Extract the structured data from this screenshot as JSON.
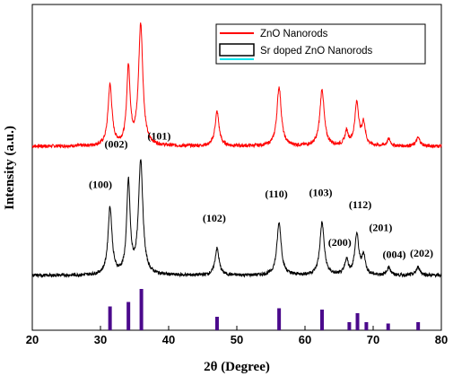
{
  "chart_data": {
    "type": "line",
    "xlabel": "2θ (Degree)",
    "ylabel": "Intensity (a.u.)",
    "xlim": [
      20,
      80
    ],
    "x_ticks": [
      20,
      30,
      40,
      50,
      60,
      70,
      80
    ],
    "y_ticks_shown": false,
    "grid": false,
    "legend_position": "top-right",
    "series": [
      {
        "name": "ZnO Nanorods",
        "color": "#ff0000",
        "peaks": [
          {
            "x": 31.4,
            "h": 0.44,
            "w": 0.35
          },
          {
            "x": 34.1,
            "h": 0.56,
            "w": 0.3
          },
          {
            "x": 35.9,
            "h": 0.88,
            "w": 0.38
          },
          {
            "x": 47.1,
            "h": 0.25,
            "w": 0.35
          },
          {
            "x": 56.2,
            "h": 0.43,
            "w": 0.38
          },
          {
            "x": 62.5,
            "h": 0.41,
            "w": 0.38
          },
          {
            "x": 66.1,
            "h": 0.1,
            "w": 0.3
          },
          {
            "x": 67.6,
            "h": 0.31,
            "w": 0.35
          },
          {
            "x": 68.6,
            "h": 0.16,
            "w": 0.3
          },
          {
            "x": 72.3,
            "h": 0.05,
            "w": 0.3
          },
          {
            "x": 76.6,
            "h": 0.06,
            "w": 0.35
          }
        ]
      },
      {
        "name": "Sr doped ZnO Nanorods",
        "color": "#000000",
        "peaks": [
          {
            "x": 31.4,
            "h": 0.5,
            "w": 0.35
          },
          {
            "x": 34.1,
            "h": 0.68,
            "w": 0.3
          },
          {
            "x": 35.9,
            "h": 0.85,
            "w": 0.38
          },
          {
            "x": 47.1,
            "h": 0.2,
            "w": 0.35
          },
          {
            "x": 56.2,
            "h": 0.39,
            "w": 0.38
          },
          {
            "x": 62.5,
            "h": 0.39,
            "w": 0.38
          },
          {
            "x": 66.1,
            "h": 0.11,
            "w": 0.3
          },
          {
            "x": 67.6,
            "h": 0.3,
            "w": 0.35
          },
          {
            "x": 68.6,
            "h": 0.14,
            "w": 0.3
          },
          {
            "x": 72.3,
            "h": 0.06,
            "w": 0.3
          },
          {
            "x": 76.6,
            "h": 0.06,
            "w": 0.35
          }
        ]
      }
    ],
    "reference_lines": {
      "color": "#4b0a8c",
      "sticks": [
        {
          "x": 31.4,
          "h": 0.53
        },
        {
          "x": 34.1,
          "h": 0.63
        },
        {
          "x": 36.0,
          "h": 0.92
        },
        {
          "x": 47.1,
          "h": 0.3
        },
        {
          "x": 56.2,
          "h": 0.49
        },
        {
          "x": 62.5,
          "h": 0.46
        },
        {
          "x": 66.5,
          "h": 0.18
        },
        {
          "x": 67.7,
          "h": 0.38
        },
        {
          "x": 69.0,
          "h": 0.18
        },
        {
          "x": 72.2,
          "h": 0.15
        },
        {
          "x": 76.6,
          "h": 0.18
        }
      ]
    },
    "annotations": [
      {
        "text": "(100)",
        "x": 30.0,
        "y": 0.65
      },
      {
        "text": "(002)",
        "x": 32.3,
        "y": 0.95
      },
      {
        "text": "(101)",
        "x": 38.6,
        "y": 1.01
      },
      {
        "text": "(102)",
        "x": 46.7,
        "y": 0.4
      },
      {
        "text": "(110)",
        "x": 55.8,
        "y": 0.58
      },
      {
        "text": "(103)",
        "x": 62.3,
        "y": 0.59
      },
      {
        "text": "(200)",
        "x": 65.1,
        "y": 0.22
      },
      {
        "text": "(112)",
        "x": 68.1,
        "y": 0.5
      },
      {
        "text": "(201)",
        "x": 71.1,
        "y": 0.33
      },
      {
        "text": "(004)",
        "x": 73.1,
        "y": 0.13
      },
      {
        "text": "(202)",
        "x": 77.1,
        "y": 0.14
      }
    ]
  }
}
